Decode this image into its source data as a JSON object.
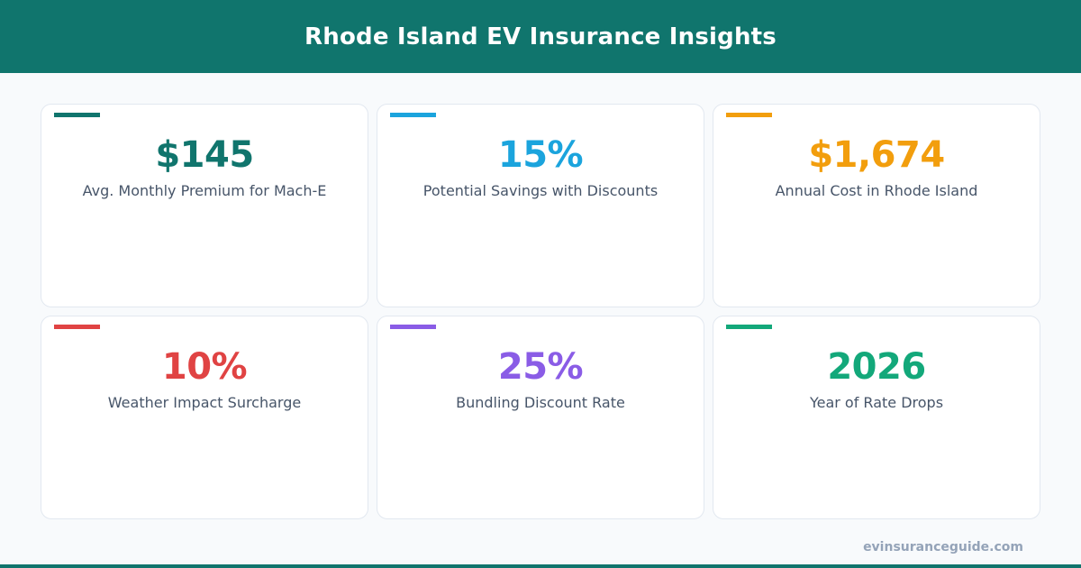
{
  "header": {
    "title": "Rhode Island EV Insurance Insights"
  },
  "cards": [
    {
      "value": "$145",
      "label": "Avg. Monthly Premium for Mach-E",
      "color": "#10756d"
    },
    {
      "value": "15%",
      "label": "Potential Savings with Discounts",
      "color": "#1ba4dd"
    },
    {
      "value": "$1,674",
      "label": "Annual Cost in Rhode Island",
      "color": "#f29e0d"
    },
    {
      "value": "10%",
      "label": "Weather Impact Surcharge",
      "color": "#e04343"
    },
    {
      "value": "25%",
      "label": "Bundling Discount Rate",
      "color": "#8a5ce6"
    },
    {
      "value": "2026",
      "label": "Year of Rate Drops",
      "color": "#13a87a"
    }
  ],
  "footer": {
    "site": "evinsuranceguide.com"
  }
}
